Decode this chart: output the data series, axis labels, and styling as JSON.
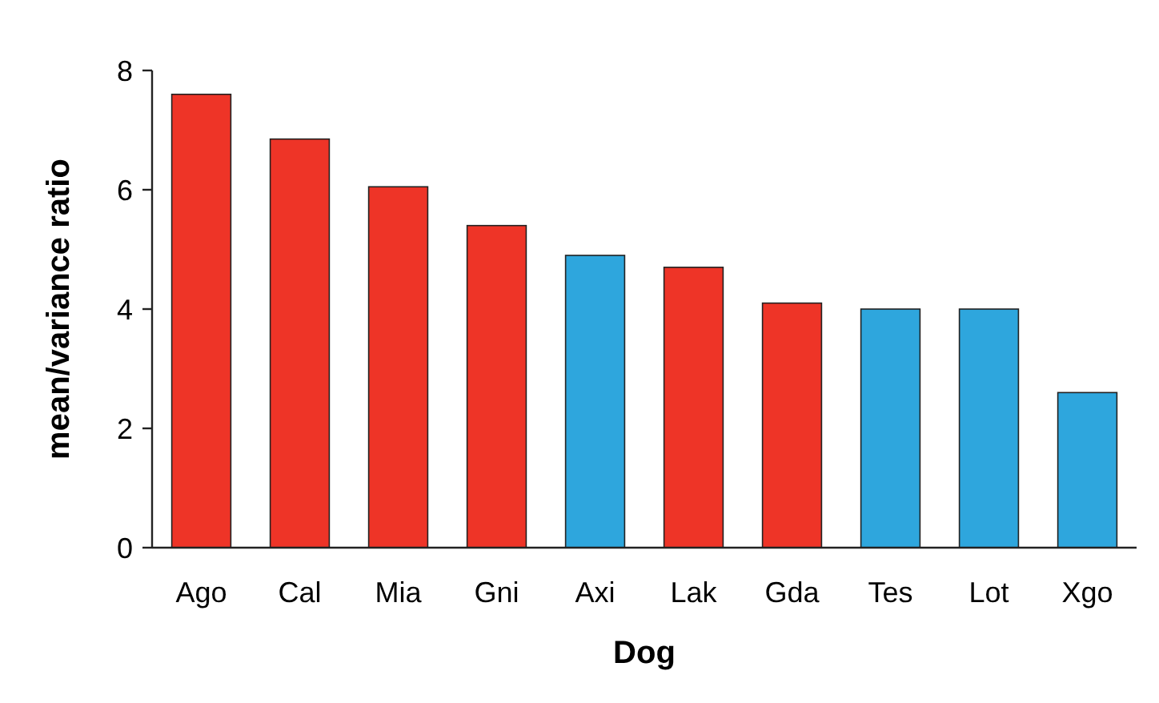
{
  "chart_data": {
    "type": "bar",
    "xlabel": "Dog",
    "ylabel": "mean/variance ratio",
    "categories": [
      "Ago",
      "Cal",
      "Mia",
      "Gni",
      "Axi",
      "Lak",
      "Gda",
      "Tes",
      "Lot",
      "Xgo"
    ],
    "values": [
      7.6,
      6.85,
      6.05,
      5.4,
      4.9,
      4.7,
      4.1,
      4.0,
      4.0,
      2.6
    ],
    "colors": [
      "#ee3427",
      "#ee3427",
      "#ee3427",
      "#ee3427",
      "#2ea6dd",
      "#ee3427",
      "#ee3427",
      "#2ea6dd",
      "#2ea6dd",
      "#2ea6dd"
    ],
    "ylim": [
      0,
      8
    ],
    "yticks": [
      0,
      2,
      4,
      6,
      8
    ],
    "grid": false
  }
}
